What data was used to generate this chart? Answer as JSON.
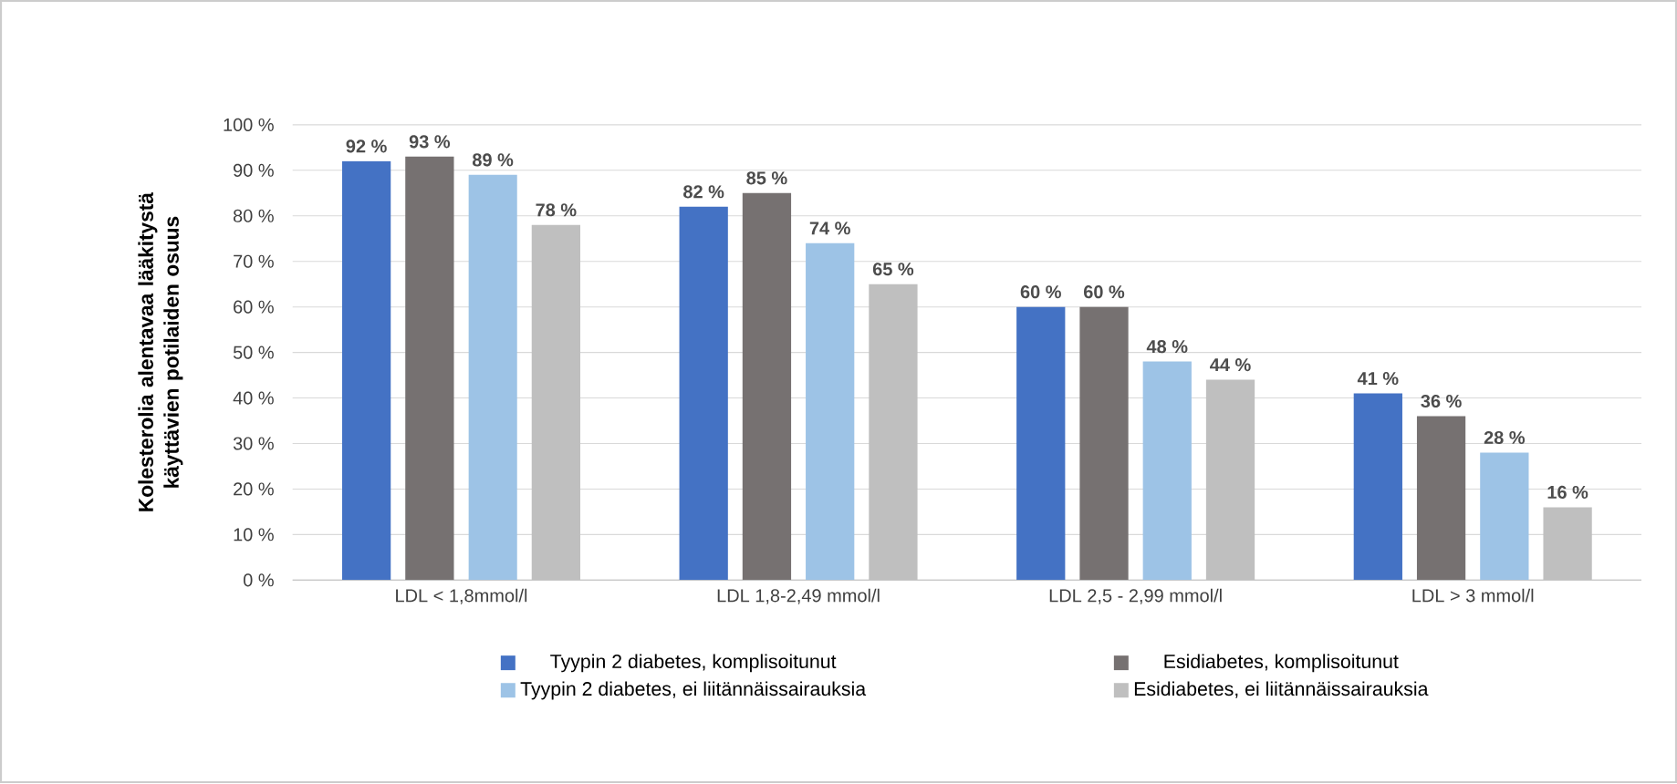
{
  "chart_data": {
    "type": "bar",
    "ylabel": "Kolesterolia alentavaa lääkitystä käyttävien potilaiden osuus",
    "categories": [
      "LDL < 1,8mmol/l",
      "LDL 1,8-2,49 mmol/l",
      "LDL 2,5 - 2,99 mmol/l",
      "LDL > 3 mmol/l"
    ],
    "series": [
      {
        "name": "Tyypin 2 diabetes, komplisoitunut",
        "color": "#4472c4",
        "values": [
          92,
          82,
          60,
          41
        ],
        "value_labels": [
          "92 %",
          "82 %",
          "60 %",
          "41 %"
        ]
      },
      {
        "name": "Esidiabetes, komplisoitunut",
        "color": "#767171",
        "values": [
          93,
          85,
          60,
          36
        ],
        "value_labels": [
          "93 %",
          "85 %",
          "60 %",
          "36 %"
        ]
      },
      {
        "name": "Tyypin 2 diabetes, ei liitännäissairauksia",
        "color": "#9dc3e6",
        "values": [
          89,
          74,
          48,
          28
        ],
        "value_labels": [
          "89 %",
          "74 %",
          "48 %",
          "28 %"
        ]
      },
      {
        "name": "Esidiabetes, ei liitännäissairauksia",
        "color": "#bfbfbf",
        "values": [
          78,
          65,
          44,
          16
        ],
        "value_labels": [
          "78 %",
          "65 %",
          "44 %",
          "16 %"
        ]
      }
    ],
    "ylim": [
      0,
      100
    ],
    "yticks": [
      {
        "value": 0,
        "label": "0 %"
      },
      {
        "value": 10,
        "label": "10 %"
      },
      {
        "value": 20,
        "label": "20 %"
      },
      {
        "value": 30,
        "label": "30 %"
      },
      {
        "value": 40,
        "label": "40 %"
      },
      {
        "value": 50,
        "label": "50 %"
      },
      {
        "value": 60,
        "label": "60 %"
      },
      {
        "value": 70,
        "label": "70 %"
      },
      {
        "value": 80,
        "label": "80 %"
      },
      {
        "value": 90,
        "label": "90 %"
      },
      {
        "value": 100,
        "label": "100 %"
      }
    ],
    "grid": "y",
    "legend": "bottom"
  }
}
